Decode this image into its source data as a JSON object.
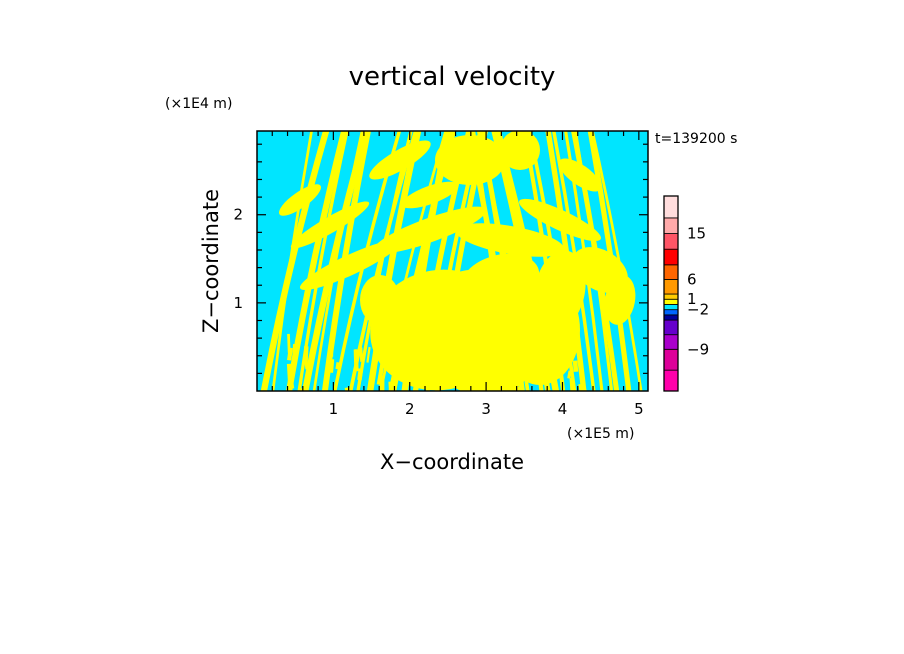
{
  "chart_data": {
    "type": "heatmap",
    "title": "vertical velocity",
    "xlabel": "X−coordinate",
    "ylabel": "Z−coordinate",
    "x_unit": "(×1E5 m)",
    "y_unit": "(×1E4 m)",
    "time_label": "t=139200 s",
    "xlim": [
      0,
      5.12
    ],
    "ylim": [
      0,
      2.95
    ],
    "x_ticks": [
      1,
      2,
      3,
      4,
      5
    ],
    "y_ticks": [
      1,
      2
    ],
    "x_tick_labels": [
      "1",
      "2",
      "3",
      "4",
      "5"
    ],
    "y_tick_labels": [
      "1",
      "2"
    ],
    "colorbar": {
      "colors": [
        "#ff00aa",
        "#dd0099",
        "#aa00cc",
        "#6600cc",
        "#000099",
        "#0066ff",
        "#00e5ff",
        "#ffff00",
        "#ffcc00",
        "#ff9900",
        "#ff6600",
        "#ff0000",
        "#ff5566",
        "#ffaaaa",
        "#ffdddd"
      ],
      "labels": [
        {
          "text": "−9",
          "level": -9
        },
        {
          "text": "−2",
          "level": -2
        },
        {
          "text": "1",
          "level": 1
        },
        {
          "text": "6",
          "level": 6
        },
        {
          "text": "15",
          "level": 15
        }
      ]
    },
    "dominant_colors": {
      "negative": "#00e5ff",
      "positive": "#ffff00"
    }
  }
}
